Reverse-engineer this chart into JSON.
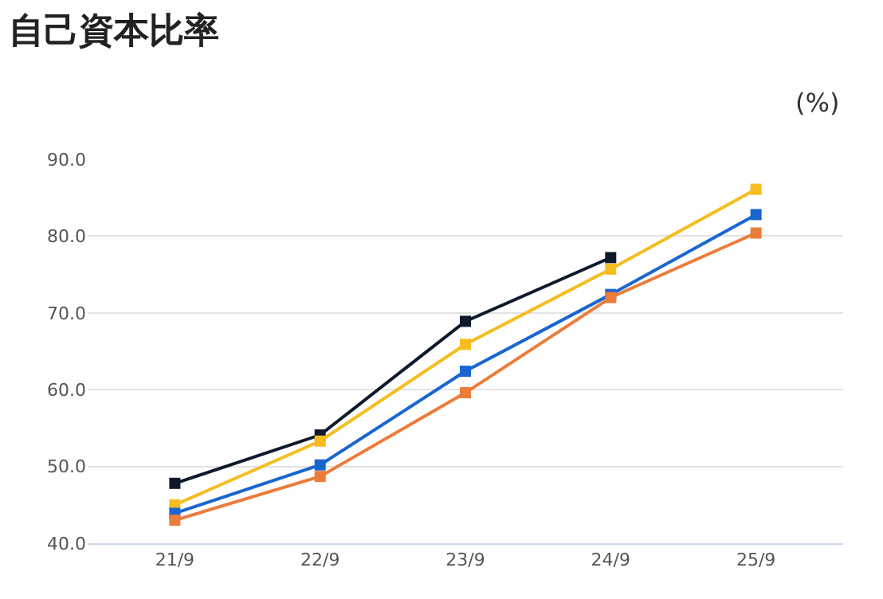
{
  "chart_data": {
    "type": "line",
    "title": "自己資本比率",
    "annotations": [
      "(%)"
    ],
    "categories": [
      "21/9",
      "22/9",
      "23/9",
      "24/9",
      "25/9"
    ],
    "series": [
      {
        "color": "#0d1a2b",
        "values": [
          47.8,
          54.1,
          68.9,
          77.2,
          null
        ]
      },
      {
        "color": "#f5bd1f",
        "values": [
          45.0,
          53.3,
          65.9,
          75.7,
          86.1
        ]
      },
      {
        "color": "#1a66d1",
        "values": [
          43.9,
          50.2,
          62.4,
          72.4,
          82.8
        ]
      },
      {
        "color": "#ec7c3a",
        "values": [
          43.0,
          48.7,
          59.6,
          72.0,
          80.4
        ]
      }
    ],
    "ylim": [
      40,
      90
    ],
    "yticks": [
      {
        "value": 40,
        "label": "40.0"
      },
      {
        "value": 50,
        "label": "50.0"
      },
      {
        "value": 60,
        "label": "60.0"
      },
      {
        "value": 70,
        "label": "70.0"
      },
      {
        "value": 80,
        "label": "80.0"
      },
      {
        "value": 90,
        "label": "90.0"
      }
    ],
    "grid": "y",
    "marker": "square",
    "line_style": "solid"
  }
}
